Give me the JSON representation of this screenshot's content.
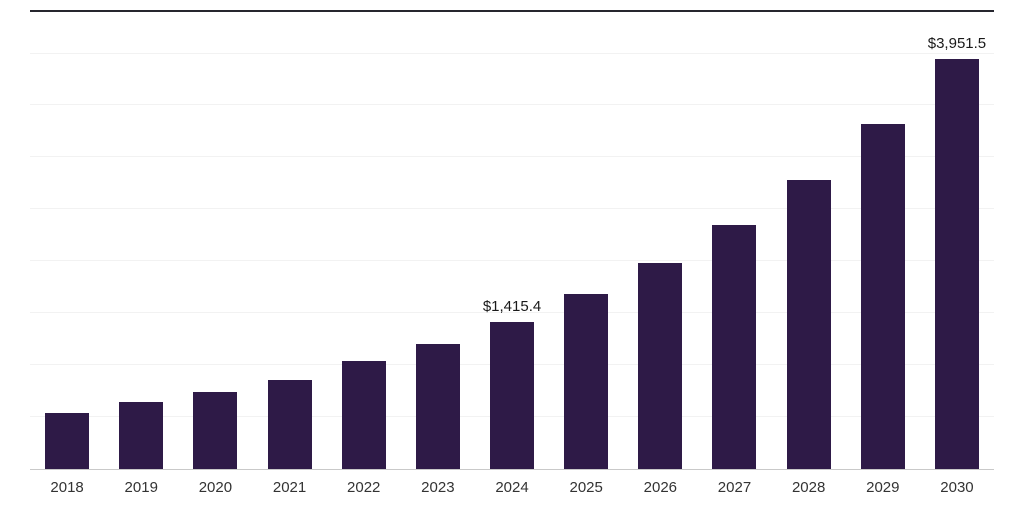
{
  "chart_data": {
    "type": "bar",
    "categories": [
      "2018",
      "2019",
      "2020",
      "2021",
      "2022",
      "2023",
      "2024",
      "2025",
      "2026",
      "2027",
      "2028",
      "2029",
      "2030"
    ],
    "values": [
      540,
      645,
      740,
      855,
      1040,
      1200,
      1415.4,
      1685,
      1985,
      2350,
      2780,
      3320,
      3951.5
    ],
    "annotations": [
      {
        "category": "2024",
        "text": "$1,415.4"
      },
      {
        "category": "2030",
        "text": "$3,951.5"
      }
    ],
    "ylim": [
      0,
      4400
    ],
    "grid_step": 500,
    "grid": true,
    "legend": false,
    "bar_color": "#2E1A47",
    "grid_color": "#F2F2F2",
    "baseline_color": "#C9C9C9",
    "top_border_color": "#26262E",
    "tick_label_color": "#333333",
    "data_label_color": "#1A1A1A"
  }
}
